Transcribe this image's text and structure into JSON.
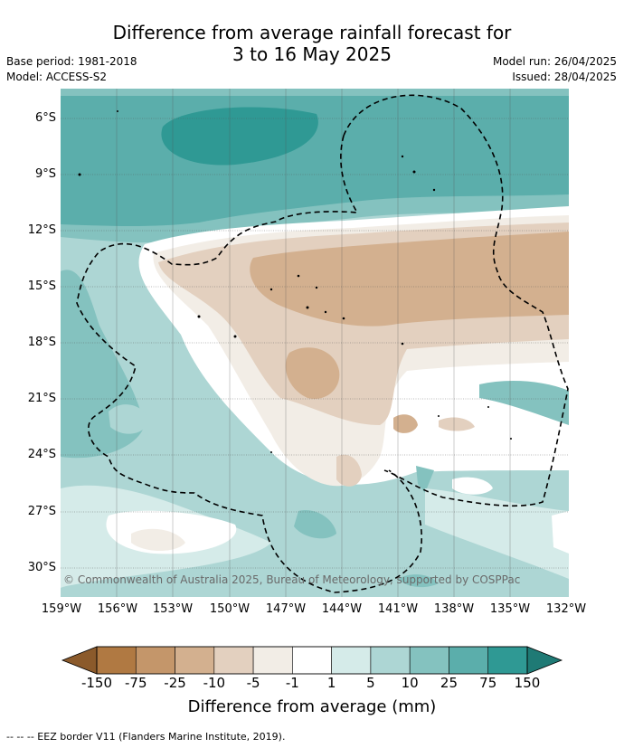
{
  "title_line1": "Difference from average rainfall forecast for",
  "title_line2": "3 to 16 May 2025",
  "base_period": "Base period: 1981-2018",
  "model": "Model: ACCESS-S2",
  "model_run": "Model run: 26/04/2025",
  "issued": "Issued: 28/04/2025",
  "copyright": "© Commonwealth of Australia 2025, Bureau of Meteorology, supported by COSPPac",
  "lat_labels": [
    "6°S",
    "9°S",
    "12°S",
    "15°S",
    "18°S",
    "21°S",
    "24°S",
    "27°S",
    "30°S"
  ],
  "lon_labels": [
    "159°W",
    "156°W",
    "153°W",
    "150°W",
    "147°W",
    "144°W",
    "141°W",
    "138°W",
    "135°W",
    "132°W"
  ],
  "legend": {
    "ticks": [
      "-150",
      "-75",
      "-25",
      "-10",
      "-5",
      "-1",
      "1",
      "5",
      "10",
      "25",
      "75",
      "150"
    ],
    "colors": [
      "#8b5a2b",
      "#b07942",
      "#c4966a",
      "#d3b08f",
      "#e3d0bf",
      "#f2ede6",
      "#ffffff",
      "#d5ebe9",
      "#add6d4",
      "#84c2bf",
      "#5baeab",
      "#2f9994",
      "#1f7a75"
    ],
    "label": "Difference from average (mm)"
  },
  "footer": "--  --  -- EEZ border V11 (Flanders Marine Institute, 2019)."
}
